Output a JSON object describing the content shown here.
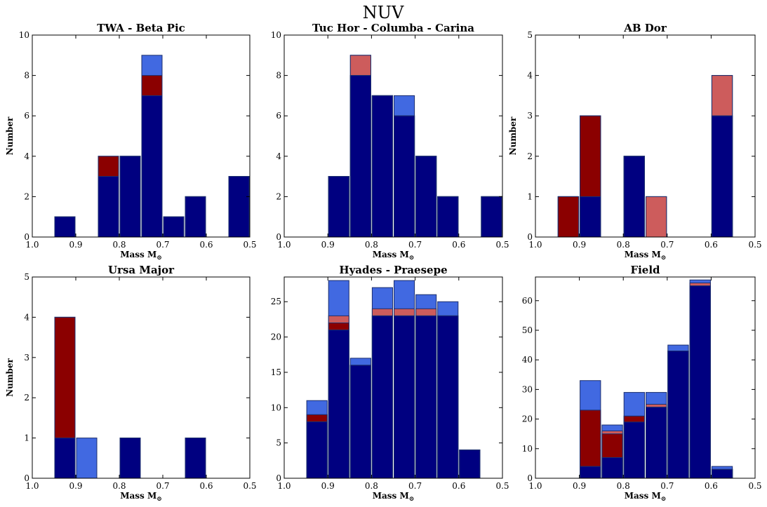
{
  "figure_title": "NUV",
  "colors": {
    "total": "#4169e1",
    "dark": "#000080",
    "red": "#8b0000",
    "light_red": "#cd5c5c",
    "edge": "#1c2f6e"
  },
  "chart_data": [
    {
      "type": "bar",
      "title": "TWA - Beta Pic",
      "xlabel": "Mass M",
      "xlabel_sub": "⊙",
      "ylabel": "Number",
      "xlim": [
        1.0,
        0.5
      ],
      "ylim": [
        0,
        10
      ],
      "xticks": [
        "1.0",
        "0.9",
        "0.8",
        "0.7",
        "0.6",
        "0.5"
      ],
      "yticks": [
        "0",
        "2",
        "4",
        "6",
        "8",
        "10"
      ],
      "bins": [
        [
          0.95,
          0.9
        ],
        [
          0.85,
          0.8
        ],
        [
          0.8,
          0.75
        ],
        [
          0.75,
          0.7
        ],
        [
          0.7,
          0.65
        ],
        [
          0.65,
          0.6
        ],
        [
          0.55,
          0.5
        ]
      ],
      "series": [
        {
          "values": [
            1,
            4,
            4,
            9,
            1,
            2,
            3
          ]
        },
        {
          "values": [
            0,
            0,
            0,
            0,
            0,
            0,
            0
          ]
        },
        {
          "values": [
            1,
            4,
            4,
            8,
            1,
            2,
            3
          ]
        },
        {
          "values": [
            1,
            3,
            4,
            7,
            1,
            2,
            3
          ]
        }
      ]
    },
    {
      "type": "bar",
      "title": "Tuc Hor - Columba - Carina",
      "xlabel": "Mass M",
      "xlabel_sub": "⊙",
      "ylabel": "",
      "xlim": [
        1.0,
        0.5
      ],
      "ylim": [
        0,
        10
      ],
      "xticks": [
        "1.0",
        "0.9",
        "0.8",
        "0.7",
        "0.6",
        "0.5"
      ],
      "yticks": [
        "0",
        "2",
        "4",
        "6",
        "8",
        "10"
      ],
      "bins": [
        [
          0.9,
          0.85
        ],
        [
          0.85,
          0.8
        ],
        [
          0.8,
          0.75
        ],
        [
          0.75,
          0.7
        ],
        [
          0.7,
          0.65
        ],
        [
          0.65,
          0.6
        ],
        [
          0.55,
          0.5
        ]
      ],
      "series": [
        {
          "values": [
            3,
            9,
            7,
            7,
            4,
            2,
            2
          ]
        },
        {
          "values": [
            3,
            9,
            7,
            6,
            4,
            2,
            2
          ]
        },
        {
          "values": [
            3,
            8,
            7,
            6,
            4,
            2,
            2
          ]
        },
        {
          "values": [
            3,
            8,
            7,
            6,
            4,
            2,
            2
          ]
        }
      ]
    },
    {
      "type": "bar",
      "title": "AB Dor",
      "xlabel": "Mass M",
      "xlabel_sub": "⊙",
      "ylabel": "Number",
      "xlim": [
        1.0,
        0.5
      ],
      "ylim": [
        0,
        5
      ],
      "xticks": [
        "1.0",
        "0.9",
        "0.8",
        "0.7",
        "0.6",
        "0.5"
      ],
      "yticks": [
        "0",
        "1",
        "2",
        "3",
        "4",
        "5"
      ],
      "bins": [
        [
          0.95,
          0.9
        ],
        [
          0.9,
          0.85
        ],
        [
          0.8,
          0.75
        ],
        [
          0.75,
          0.7
        ],
        [
          0.6,
          0.55
        ]
      ],
      "series": [
        {
          "values": [
            1,
            3,
            2,
            1,
            4
          ]
        },
        {
          "values": [
            1,
            3,
            2,
            1,
            4
          ]
        },
        {
          "values": [
            1,
            3,
            2,
            0,
            3
          ]
        },
        {
          "values": [
            0,
            1,
            2,
            0,
            3
          ]
        }
      ]
    },
    {
      "type": "bar",
      "title": "Ursa Major",
      "xlabel": "Mass M",
      "xlabel_sub": "⊙",
      "ylabel": "Number",
      "xlim": [
        1.0,
        0.5
      ],
      "ylim": [
        0,
        5
      ],
      "xticks": [
        "1.0",
        "0.9",
        "0.8",
        "0.7",
        "0.6",
        "0.5"
      ],
      "yticks": [
        "0",
        "1",
        "2",
        "3",
        "4",
        "5"
      ],
      "bins": [
        [
          0.95,
          0.9
        ],
        [
          0.9,
          0.85
        ],
        [
          0.8,
          0.75
        ],
        [
          0.65,
          0.6
        ]
      ],
      "series": [
        {
          "values": [
            4,
            1,
            1,
            1
          ]
        },
        {
          "values": [
            4,
            0,
            1,
            1
          ]
        },
        {
          "values": [
            4,
            0,
            1,
            1
          ]
        },
        {
          "values": [
            1,
            0,
            1,
            1
          ]
        }
      ]
    },
    {
      "type": "bar",
      "title": "Hyades - Praesepe",
      "xlabel": "Mass M",
      "xlabel_sub": "⊙",
      "ylabel": "",
      "xlim": [
        1.0,
        0.5
      ],
      "ylim": [
        0,
        28.5
      ],
      "xticks": [
        "1.0",
        "0.9",
        "0.8",
        "0.7",
        "0.6",
        "0.5"
      ],
      "yticks": [
        "0",
        "5",
        "10",
        "15",
        "20",
        "25"
      ],
      "bins": [
        [
          0.95,
          0.9
        ],
        [
          0.9,
          0.85
        ],
        [
          0.85,
          0.8
        ],
        [
          0.8,
          0.75
        ],
        [
          0.75,
          0.7
        ],
        [
          0.7,
          0.65
        ],
        [
          0.65,
          0.6
        ],
        [
          0.6,
          0.55
        ]
      ],
      "series": [
        {
          "values": [
            11,
            28,
            17,
            27,
            28,
            26,
            25,
            4
          ]
        },
        {
          "values": [
            9,
            23,
            16,
            24,
            24,
            24,
            23,
            4
          ]
        },
        {
          "values": [
            9,
            22,
            16,
            23,
            23,
            23,
            23,
            4
          ]
        },
        {
          "values": [
            8,
            21,
            16,
            23,
            23,
            23,
            23,
            4
          ]
        }
      ]
    },
    {
      "type": "bar",
      "title": "Field",
      "xlabel": "Mass M",
      "xlabel_sub": "⊙",
      "ylabel": "",
      "xlim": [
        1.0,
        0.5
      ],
      "ylim": [
        0,
        68
      ],
      "xticks": [
        "1.0",
        "0.9",
        "0.8",
        "0.7",
        "0.6",
        "0.5"
      ],
      "yticks": [
        "0",
        "10",
        "20",
        "30",
        "40",
        "50",
        "60"
      ],
      "bins": [
        [
          0.9,
          0.85
        ],
        [
          0.85,
          0.8
        ],
        [
          0.8,
          0.75
        ],
        [
          0.75,
          0.7
        ],
        [
          0.7,
          0.65
        ],
        [
          0.65,
          0.6
        ],
        [
          0.6,
          0.55
        ]
      ],
      "series": [
        {
          "values": [
            33,
            18,
            29,
            29,
            45,
            67,
            4
          ]
        },
        {
          "values": [
            23,
            16,
            21,
            25,
            43,
            66,
            3
          ]
        },
        {
          "values": [
            23,
            15,
            21,
            24,
            43,
            65,
            3
          ]
        },
        {
          "values": [
            4,
            7,
            19,
            24,
            43,
            65,
            3
          ]
        }
      ]
    }
  ]
}
